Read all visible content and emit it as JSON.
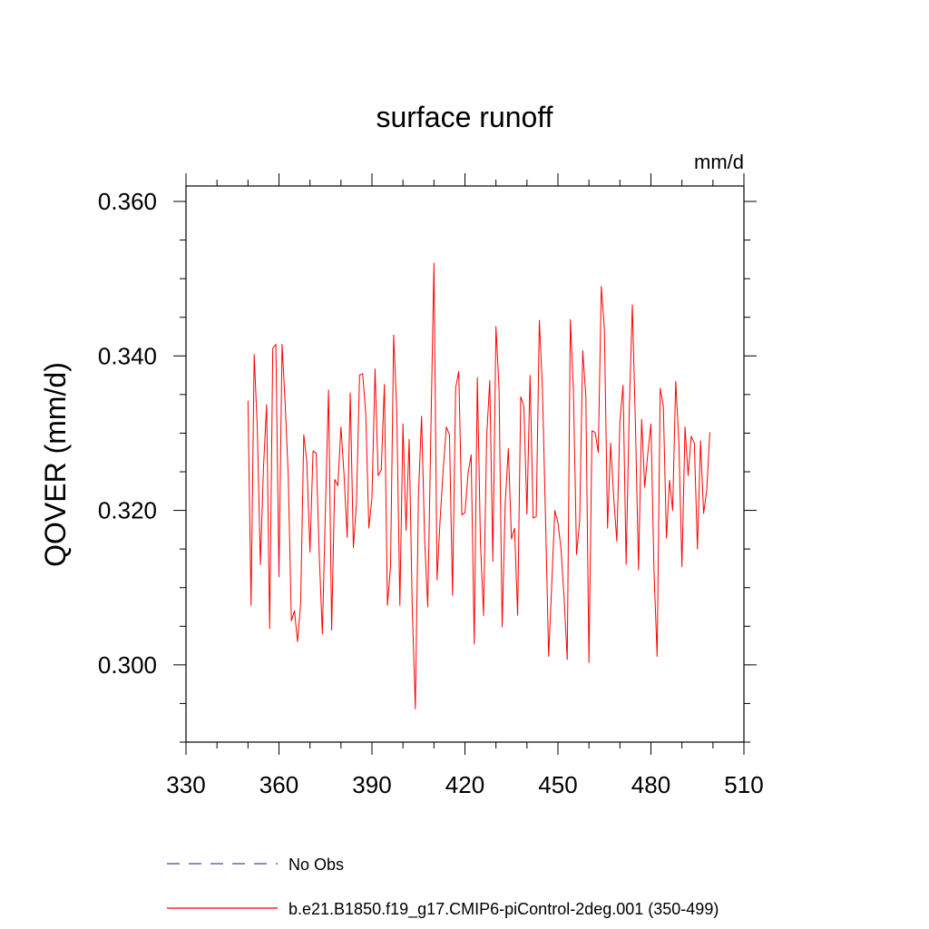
{
  "chart_data": {
    "type": "line",
    "title": "surface runoff",
    "units_label": "mm/d",
    "ylabel": "QOVER  (mm/d)",
    "xlabel": "",
    "xlim": [
      330,
      510
    ],
    "ylim": [
      0.29,
      0.362
    ],
    "xticks": [
      330,
      360,
      390,
      420,
      450,
      480,
      510
    ],
    "xtick_labels": [
      "330",
      "360",
      "390",
      "420",
      "450",
      "480",
      "510"
    ],
    "yticks": [
      0.3,
      0.32,
      0.34,
      0.36
    ],
    "ytick_labels": [
      "0.300",
      "0.320",
      "0.340",
      "0.360"
    ],
    "grid": false,
    "legend_position": "bottom",
    "colors": {
      "obs": "#5a3fa0",
      "model": "#ff0000"
    },
    "series": [
      {
        "name": "No Obs",
        "style": "dashed",
        "values": []
      },
      {
        "name": "b.e21.B1850.f19_g17.CMIP6-piControl-2deg.001 (350-499)",
        "style": "solid",
        "x_start": 350,
        "values": [
          0.3342,
          0.3077,
          0.3402,
          0.3308,
          0.313,
          0.3255,
          0.3337,
          0.3047,
          0.341,
          0.3415,
          0.3114,
          0.3415,
          0.3338,
          0.3245,
          0.3057,
          0.307,
          0.303,
          0.308,
          0.3298,
          0.3262,
          0.3146,
          0.3277,
          0.3274,
          0.3142,
          0.304,
          0.3204,
          0.3356,
          0.3045,
          0.324,
          0.3232,
          0.3308,
          0.3246,
          0.3165,
          0.3352,
          0.3152,
          0.3209,
          0.3375,
          0.3377,
          0.3325,
          0.3177,
          0.3216,
          0.3383,
          0.3245,
          0.3252,
          0.3363,
          0.3077,
          0.3128,
          0.3427,
          0.3329,
          0.3077,
          0.3312,
          0.3174,
          0.3292,
          0.3073,
          0.2943,
          0.3219,
          0.3322,
          0.3162,
          0.3075,
          0.3302,
          0.352,
          0.311,
          0.3189,
          0.3254,
          0.3308,
          0.3298,
          0.309,
          0.3359,
          0.338,
          0.3194,
          0.3197,
          0.3248,
          0.3272,
          0.3027,
          0.3372,
          0.3158,
          0.3064,
          0.3295,
          0.3368,
          0.3134,
          0.3438,
          0.3358,
          0.3049,
          0.321,
          0.328,
          0.3163,
          0.3177,
          0.3064,
          0.3347,
          0.3335,
          0.3195,
          0.3375,
          0.319,
          0.3192,
          0.3446,
          0.3357,
          0.3189,
          0.3011,
          0.3104,
          0.32,
          0.3184,
          0.315,
          0.3085,
          0.3007,
          0.3447,
          0.3355,
          0.3143,
          0.3186,
          0.3407,
          0.3348,
          0.3003,
          0.3303,
          0.3301,
          0.3275,
          0.349,
          0.3433,
          0.3177,
          0.3287,
          0.3216,
          0.316,
          0.3316,
          0.3362,
          0.313,
          0.3328,
          0.3466,
          0.3311,
          0.3123,
          0.3318,
          0.323,
          0.3274,
          0.3312,
          0.312,
          0.3011,
          0.3358,
          0.3335,
          0.3164,
          0.3239,
          0.32,
          0.3367,
          0.3289,
          0.3127,
          0.3308,
          0.3245,
          0.3296,
          0.3287,
          0.315,
          0.329,
          0.3196,
          0.3226,
          0.3301
        ]
      }
    ]
  }
}
